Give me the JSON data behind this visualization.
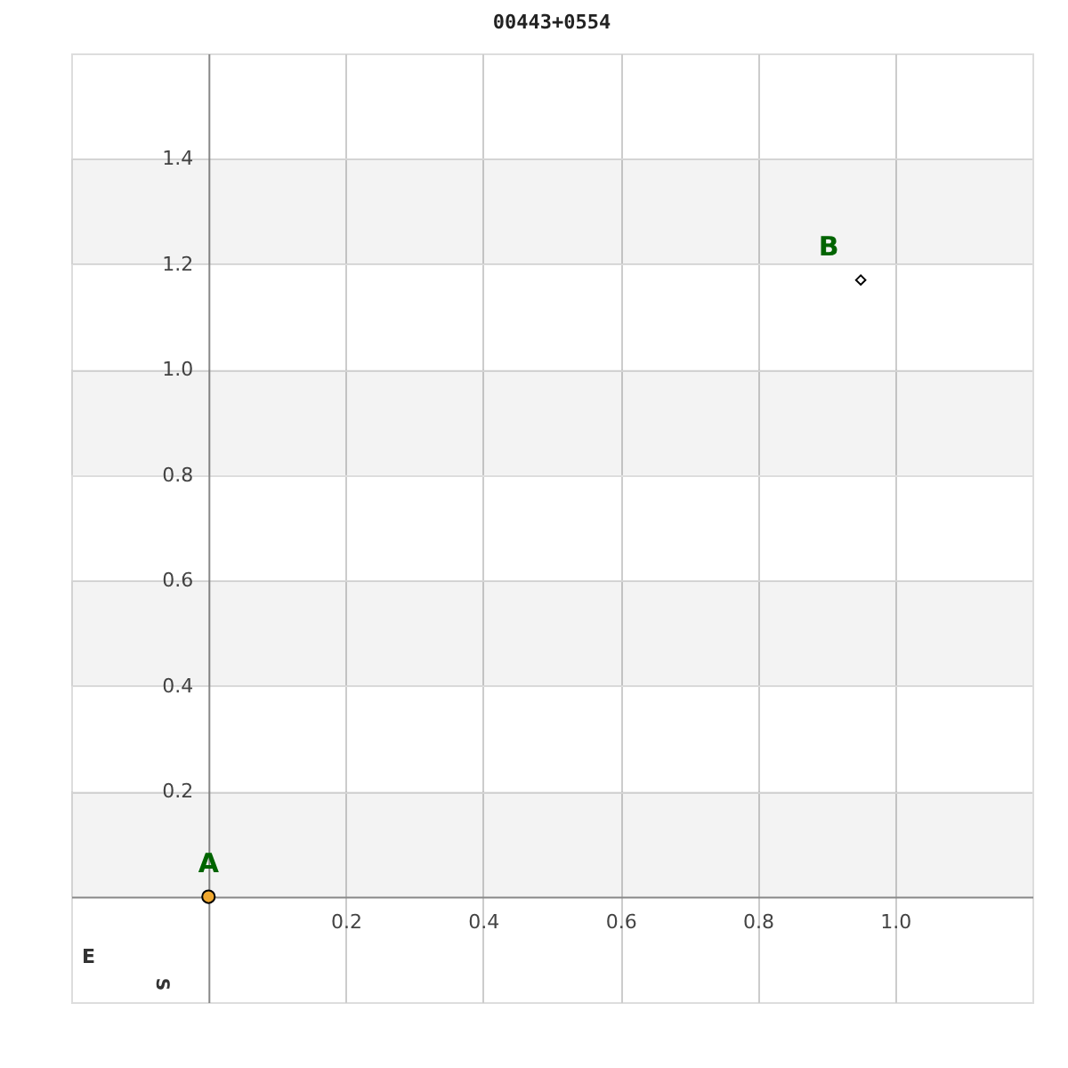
{
  "chart_data": {
    "type": "scatter",
    "title": "00443+0554",
    "series": [
      {
        "name": "A",
        "color": "#f0a830",
        "marker": "circle",
        "x": [
          0
        ],
        "values": [
          0
        ]
      },
      {
        "name": "B",
        "color": "#ffffff",
        "marker": "diamond",
        "x": [
          0.95
        ],
        "values": [
          1.17
        ]
      }
    ],
    "xlim": [
      -0.2,
      1.2
    ],
    "ylim": [
      -0.2,
      1.6
    ],
    "xticks": [
      0.2,
      0.4,
      0.6,
      0.8,
      {
        "value": 1,
        "label": "1.0"
      }
    ],
    "yticks": [
      0.2,
      0.4,
      0.6,
      0.8,
      {
        "value": 1,
        "label": "1.0"
      },
      1.2,
      1.4
    ],
    "bands": [
      {
        "axis": "y",
        "from": 0,
        "to": 0.2,
        "color": "#f3f3f3"
      },
      {
        "axis": "y",
        "from": 0.4,
        "to": 0.6,
        "color": "#f3f3f3"
      },
      {
        "axis": "y",
        "from": 0.8,
        "to": 1,
        "color": "#f3f3f3"
      },
      {
        "axis": "y",
        "from": 1.2,
        "to": 1.4,
        "color": "#f3f3f3"
      }
    ],
    "annotations": [
      "E",
      "S"
    ],
    "grid": true
  }
}
